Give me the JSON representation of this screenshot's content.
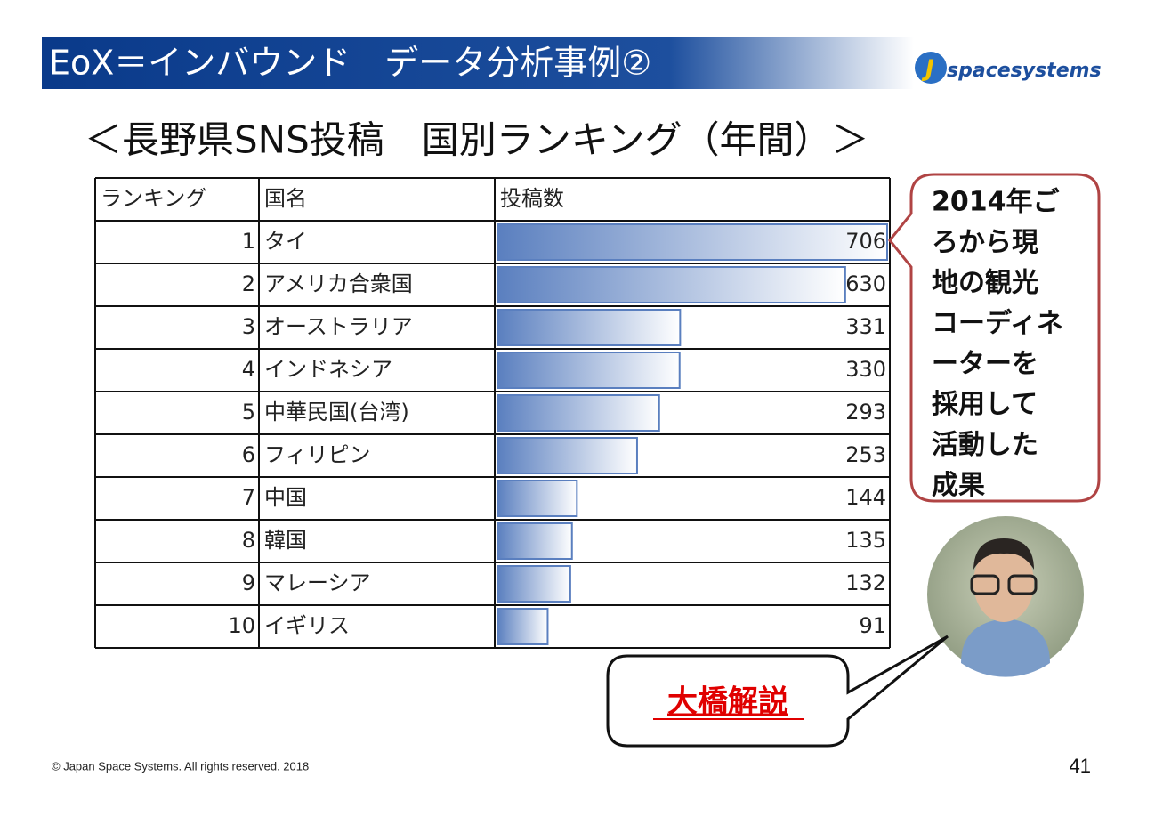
{
  "header": {
    "title": "EoX＝インバウンド　データ分析事例②",
    "logo": "spacesystems"
  },
  "subtitle": "＜長野県SNS投稿　国別ランキング（年間）＞",
  "table": {
    "columns": [
      "ランキング",
      "国名",
      "投稿数"
    ],
    "rows": [
      [
        1,
        "タイ",
        706
      ],
      [
        2,
        "アメリカ合衆国",
        630
      ],
      [
        3,
        "オーストラリア",
        331
      ],
      [
        4,
        "インドネシア",
        330
      ],
      [
        5,
        "中華民国(台湾)",
        293
      ],
      [
        6,
        "フィリピン",
        253
      ],
      [
        7,
        "中国",
        144
      ],
      [
        8,
        "韓国",
        135
      ],
      [
        9,
        "マレーシア",
        132
      ],
      [
        10,
        "イギリス",
        91
      ]
    ]
  },
  "callout": {
    "lines": [
      "2014年ご",
      "ろから現",
      "地の観光",
      "コーディネ",
      "ーターを",
      "採用して",
      "活動した",
      "成果"
    ]
  },
  "speech": "大橋解説",
  "footer": {
    "copyright": "© Japan Space Systems. All rights reserved. 2018",
    "page": "41"
  }
}
